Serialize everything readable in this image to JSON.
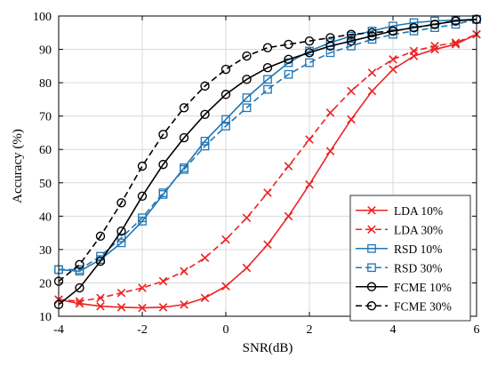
{
  "chart_data": {
    "type": "line",
    "xlabel": "SNR(dB)",
    "ylabel": "Accuracy (%)",
    "xlim": [
      -4,
      6
    ],
    "ylim": [
      10,
      100
    ],
    "xticks": [
      -4,
      -2,
      0,
      2,
      4,
      6
    ],
    "yticks": [
      10,
      20,
      30,
      40,
      50,
      60,
      70,
      80,
      90,
      100
    ],
    "grid": true,
    "legend_position": "lower-right",
    "x": [
      -4,
      -3.5,
      -3,
      -2.5,
      -2,
      -1.5,
      -1,
      -0.5,
      0,
      0.5,
      1,
      1.5,
      2,
      2.5,
      3,
      3.5,
      4,
      4.5,
      5,
      5.5,
      6
    ],
    "series": [
      {
        "name": "LDA 10%",
        "color": "#ee2222",
        "dash": "solid",
        "marker": "x",
        "values": [
          15.0,
          13.8,
          13.0,
          12.7,
          12.5,
          12.7,
          13.5,
          15.5,
          19.0,
          24.5,
          31.5,
          40.0,
          49.5,
          59.5,
          69.0,
          77.5,
          84.0,
          88.0,
          90.0,
          91.5,
          94.5
        ]
      },
      {
        "name": "LDA 30%",
        "color": "#ee2222",
        "dash": "dashed",
        "marker": "x",
        "values": [
          15.0,
          14.5,
          15.5,
          17.0,
          18.5,
          20.5,
          23.5,
          27.5,
          33.0,
          39.5,
          47.0,
          55.0,
          63.0,
          71.0,
          77.5,
          83.0,
          87.0,
          89.5,
          91.0,
          92.0,
          94.5
        ]
      },
      {
        "name": "RSD 10%",
        "color": "#1f77b4",
        "dash": "solid",
        "marker": "square",
        "values": [
          24.0,
          23.5,
          27.0,
          32.0,
          38.5,
          46.5,
          54.5,
          62.5,
          69.0,
          75.5,
          81.0,
          86.0,
          89.5,
          92.0,
          94.0,
          95.5,
          97.0,
          98.0,
          98.5,
          98.8,
          99.0
        ]
      },
      {
        "name": "RSD 30%",
        "color": "#1f77b4",
        "dash": "dashed",
        "marker": "square",
        "values": [
          24.0,
          24.0,
          28.0,
          33.5,
          39.5,
          47.0,
          54.0,
          61.0,
          67.0,
          72.5,
          78.0,
          82.5,
          86.0,
          89.0,
          91.0,
          93.0,
          94.5,
          95.5,
          96.5,
          97.5,
          99.0
        ]
      },
      {
        "name": "FCME 10%",
        "color": "#000000",
        "dash": "solid",
        "marker": "circle",
        "values": [
          13.5,
          18.5,
          26.5,
          35.5,
          46.0,
          55.5,
          63.5,
          70.5,
          76.5,
          81.0,
          84.5,
          87.0,
          89.0,
          91.0,
          92.5,
          94.0,
          95.5,
          96.5,
          97.5,
          98.5,
          99.0
        ]
      },
      {
        "name": "FCME 30%",
        "color": "#000000",
        "dash": "dashed",
        "marker": "circle",
        "values": [
          20.5,
          25.5,
          34.0,
          44.0,
          55.0,
          64.5,
          72.5,
          79.0,
          84.0,
          88.0,
          90.5,
          91.5,
          92.5,
          93.5,
          94.5,
          95.0,
          95.5,
          96.5,
          97.5,
          98.5,
          99.0
        ]
      }
    ]
  }
}
